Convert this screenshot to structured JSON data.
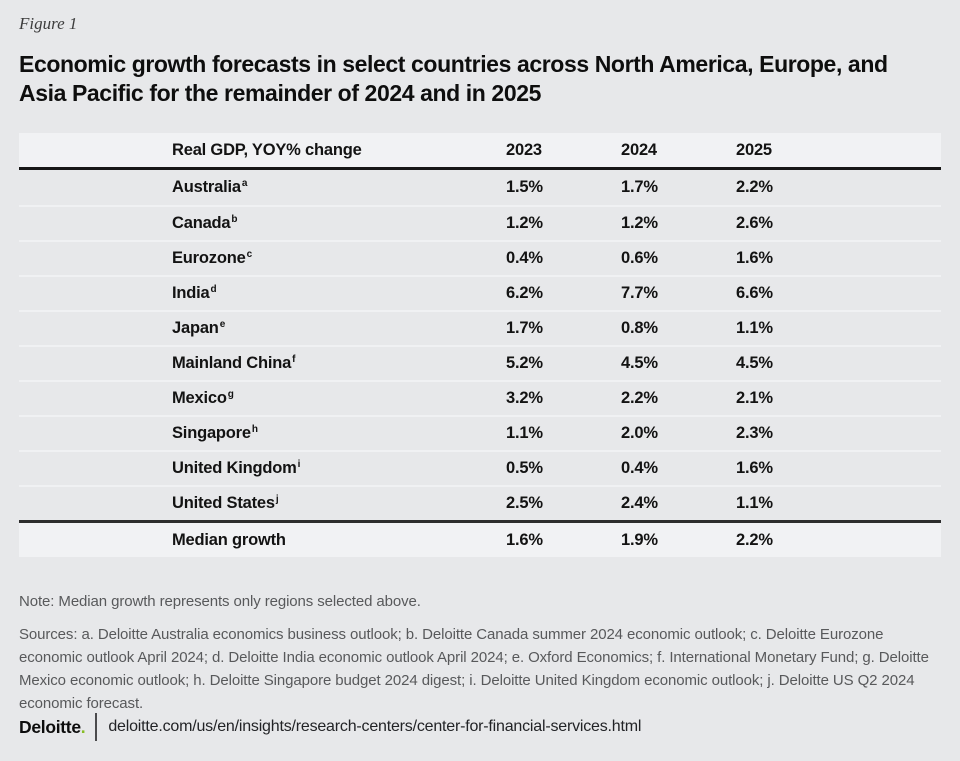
{
  "figure_label": "Figure 1",
  "title": "Economic growth forecasts in select countries across North America, Europe, and Asia Pacific for the remainder of 2024 and in 2025",
  "table": {
    "header": {
      "label": "Real GDP, YOY% change",
      "cols": [
        "2023",
        "2024",
        "2025"
      ]
    },
    "rows": [
      {
        "country": "Australia",
        "sup": "a",
        "values": [
          "1.5%",
          "1.7%",
          "2.2%"
        ]
      },
      {
        "country": "Canada",
        "sup": "b",
        "values": [
          "1.2%",
          "1.2%",
          "2.6%"
        ]
      },
      {
        "country": "Eurozone",
        "sup": "c",
        "values": [
          "0.4%",
          "0.6%",
          "1.6%"
        ]
      },
      {
        "country": "India",
        "sup": "d",
        "values": [
          "6.2%",
          "7.7%",
          "6.6%"
        ]
      },
      {
        "country": "Japan",
        "sup": "e",
        "values": [
          "1.7%",
          "0.8%",
          "1.1%"
        ]
      },
      {
        "country": "Mainland China",
        "sup": "f",
        "values": [
          "5.2%",
          "4.5%",
          "4.5%"
        ]
      },
      {
        "country": "Mexico",
        "sup": "g",
        "values": [
          "3.2%",
          "2.2%",
          "2.1%"
        ]
      },
      {
        "country": "Singapore",
        "sup": "h",
        "values": [
          "1.1%",
          "2.0%",
          "2.3%"
        ]
      },
      {
        "country": "United Kingdom",
        "sup": "i",
        "values": [
          "0.5%",
          "0.4%",
          "1.6%"
        ]
      },
      {
        "country": "United States",
        "sup": "j",
        "values": [
          "2.5%",
          "2.4%",
          "1.1%"
        ]
      }
    ],
    "median": {
      "label": "Median growth",
      "values": [
        "1.6%",
        "1.9%",
        "2.2%"
      ]
    }
  },
  "note": "Note: Median growth represents only regions selected above.",
  "sources": "Sources: a. Deloitte Australia economics business outlook; b. Deloitte Canada summer 2024 economic outlook; c. Deloitte Eurozone economic outlook April 2024; d. Deloitte India economic outlook April 2024; e. Oxford Economics; f. International Monetary Fund; g. Deloitte Mexico economic outlook; h. Deloitte Singapore budget 2024 digest; i. Deloitte United Kingdom economic outlook; j. Deloitte US Q2 2024 economic forecast.",
  "footer": {
    "brand": "Deloitte",
    "brand_dot": ".",
    "url": "deloitte.com/us/en/insights/research-centers/center-for-financial-services.html"
  },
  "colors": {
    "page_bg": "#e7e8ea",
    "band_bg": "#f1f2f4",
    "rule_dark": "#161616",
    "text": "#131313",
    "muted": "#58595b",
    "accent_green": "#86bc25"
  },
  "chart_data": {
    "type": "table",
    "title": "Economic growth forecasts in select countries across North America, Europe, and Asia Pacific for the remainder of 2024 and in 2025",
    "columns": [
      "Real GDP, YOY% change",
      "2023",
      "2024",
      "2025"
    ],
    "categories": [
      "Australia",
      "Canada",
      "Eurozone",
      "India",
      "Japan",
      "Mainland China",
      "Mexico",
      "Singapore",
      "United Kingdom",
      "United States",
      "Median growth"
    ],
    "series": [
      {
        "name": "2023",
        "values": [
          1.5,
          1.2,
          0.4,
          6.2,
          1.7,
          5.2,
          3.2,
          1.1,
          0.5,
          2.5,
          1.6
        ]
      },
      {
        "name": "2024",
        "values": [
          1.7,
          1.2,
          0.6,
          7.7,
          0.8,
          4.5,
          2.2,
          2.0,
          0.4,
          2.4,
          1.9
        ]
      },
      {
        "name": "2025",
        "values": [
          2.2,
          2.6,
          1.6,
          6.6,
          1.1,
          4.5,
          2.1,
          2.3,
          1.6,
          1.1,
          2.2
        ]
      }
    ],
    "units": "percent, real GDP YOY% change"
  }
}
